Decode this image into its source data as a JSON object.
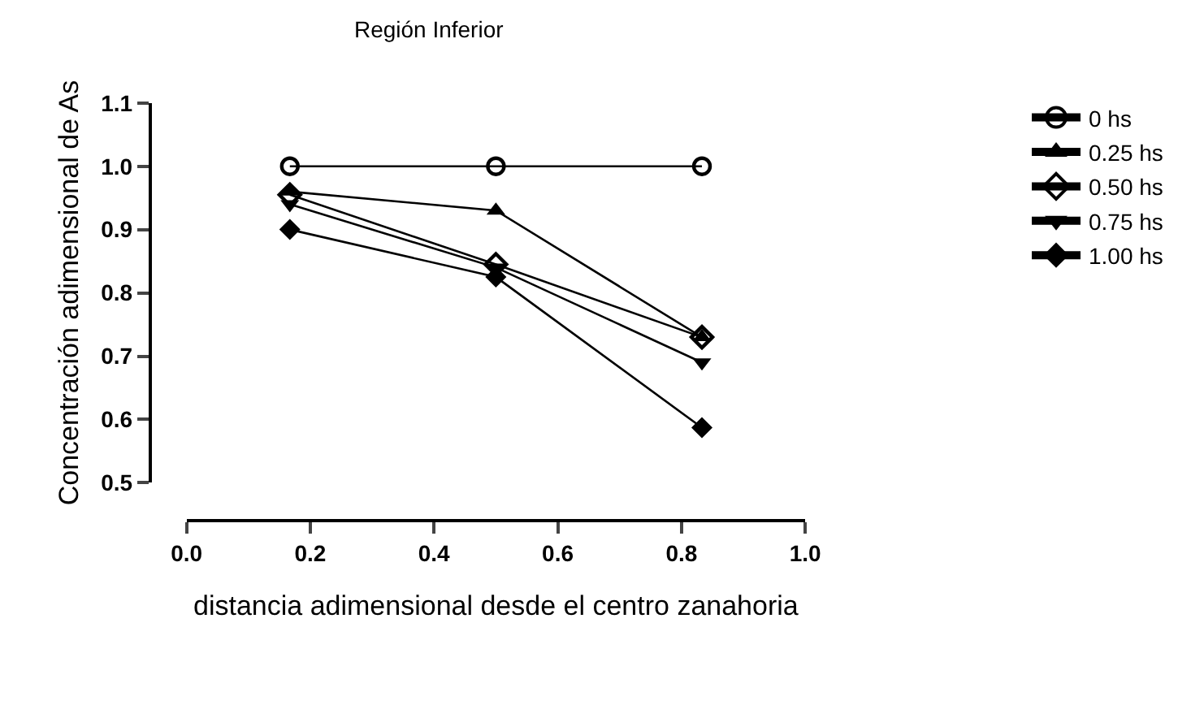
{
  "chart_data": {
    "type": "line",
    "title": "Región Inferior",
    "xlabel": "distancia adimensional desde el centro zanahoria",
    "ylabel": "Concentración adimensional de As",
    "x": [
      0.167,
      0.5,
      0.833
    ],
    "series": [
      {
        "name": "0 hs",
        "color": "#000000",
        "marker": "circle-open",
        "values": [
          1.0,
          1.0,
          1.0
        ]
      },
      {
        "name": "0.25 hs",
        "color": "#000000",
        "marker": "triangle",
        "values": [
          0.96,
          0.93,
          0.73
        ]
      },
      {
        "name": "0.50 hs",
        "color": "#000000",
        "marker": "diamond-open",
        "values": [
          0.955,
          0.845,
          0.73
        ]
      },
      {
        "name": "0.75 hs",
        "color": "#000000",
        "marker": "triangle-down",
        "values": [
          0.94,
          0.84,
          0.69
        ]
      },
      {
        "name": "1.00 hs",
        "color": "#000000",
        "marker": "diamond",
        "values": [
          0.9,
          0.825,
          0.587
        ]
      }
    ],
    "xlim": [
      0,
      1
    ],
    "xticks": [
      {
        "value": 0,
        "label": "0.0"
      },
      0.2,
      0.4,
      0.6,
      0.8,
      {
        "value": 1,
        "label": "1.0"
      }
    ],
    "ylim": [
      0.5,
      1.1
    ],
    "yticks": [
      0.5,
      0.6,
      0.7,
      0.8,
      0.9,
      {
        "value": 1,
        "label": "1.0"
      },
      1.1
    ],
    "legend": "right",
    "line_style": "solid"
  }
}
